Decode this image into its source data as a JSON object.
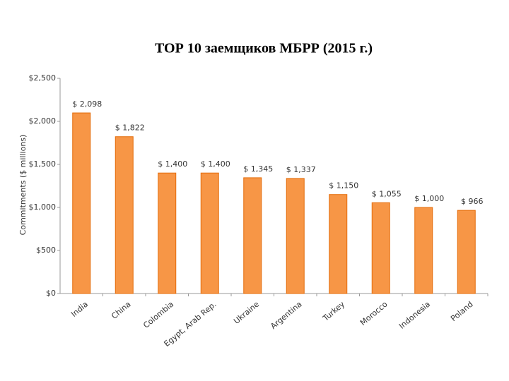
{
  "chart_data": {
    "type": "bar",
    "title": "ТОР 10 заемщиков МБРР (2015 г.)",
    "y_label": "Commitments ($ millions)",
    "categories": [
      "India",
      "China",
      "Colombia",
      "Egypt, Arab Rep.",
      "Ukraine",
      "Argentina",
      "Turkey",
      "Morocco",
      "Indonesia",
      "Poland"
    ],
    "values": [
      2098,
      1822,
      1400,
      1400,
      1345,
      1337,
      1150,
      1055,
      1000,
      966
    ],
    "value_labels": [
      "$ 2,098",
      "$ 1,822",
      "$ 1,400",
      "$ 1,400",
      "$ 1,345",
      "$ 1,337",
      "$ 1,150",
      "$ 1,055",
      "$ 1,000",
      "$ 966"
    ],
    "color": "#f79646",
    "ylim": [
      0,
      2500
    ],
    "yticks": [
      {
        "value": 0,
        "label": "$0"
      },
      {
        "value": 500,
        "label": "$500"
      },
      {
        "value": 1000,
        "label": "$1,000"
      },
      {
        "value": 1500,
        "label": "$1,500"
      },
      {
        "value": 2000,
        "label": "$2,000"
      },
      {
        "value": 2500,
        "label": "$2,500"
      }
    ],
    "grid": false
  }
}
